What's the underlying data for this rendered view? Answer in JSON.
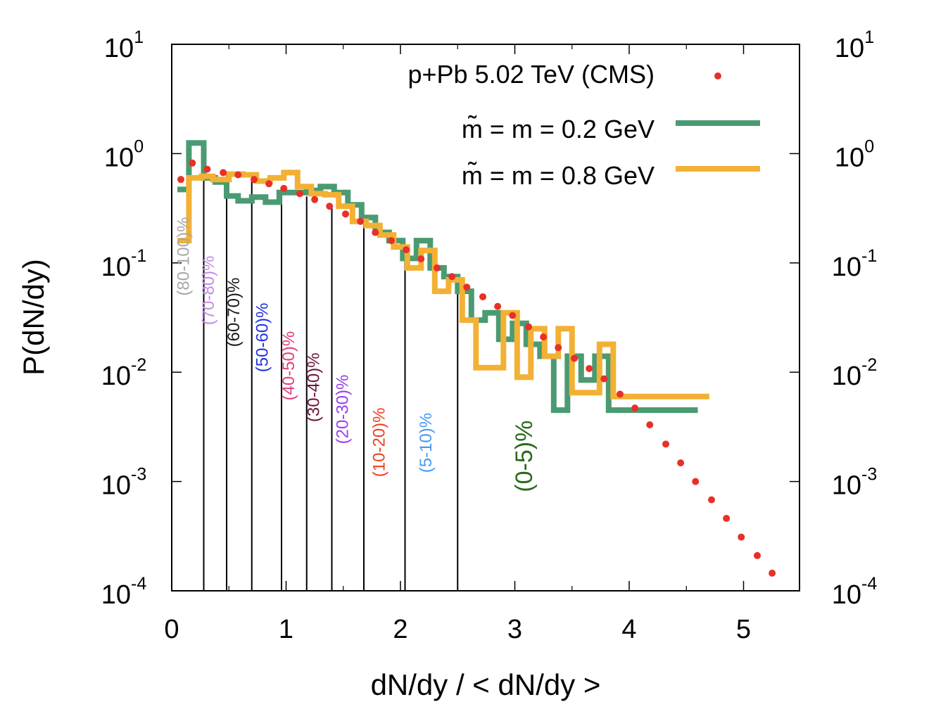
{
  "chart_data": {
    "type": "histogram-step",
    "xlabel": "dN/dy / < dN/dy >",
    "ylabel": "P(dN/dy)",
    "xlim": [
      0,
      5.5
    ],
    "ylim": [
      0.0001,
      10
    ],
    "yscale": "log",
    "x_ticks": [
      "0",
      "1",
      "2",
      "3",
      "4",
      "5"
    ],
    "y_ticks": [
      {
        "base": "10",
        "exp": "-4",
        "value": 0.0001
      },
      {
        "base": "10",
        "exp": "-3",
        "value": 0.001
      },
      {
        "base": "10",
        "exp": "-2",
        "value": 0.01
      },
      {
        "base": "10",
        "exp": "-1",
        "value": 0.1
      },
      {
        "base": "10",
        "exp": "0",
        "value": 1
      },
      {
        "base": "10",
        "exp": "1",
        "value": 10
      }
    ],
    "legend": {
      "cms": "p+Pb 5.02 TeV (CMS)",
      "green": "m̃ = m = 0.2 GeV",
      "orange": "m̃ = m = 0.8 GeV"
    },
    "colors": {
      "cms": "#e8302a",
      "green": "#4a9a72",
      "orange": "#f2b134",
      "axis": "#000000"
    },
    "cms_points": [
      {
        "x": 0.08,
        "y": 0.58
      },
      {
        "x": 0.18,
        "y": 0.82
      },
      {
        "x": 0.31,
        "y": 0.72
      },
      {
        "x": 0.45,
        "y": 0.67
      },
      {
        "x": 0.58,
        "y": 0.64
      },
      {
        "x": 0.72,
        "y": 0.58
      },
      {
        "x": 0.85,
        "y": 0.53
      },
      {
        "x": 0.98,
        "y": 0.48
      },
      {
        "x": 1.12,
        "y": 0.43
      },
      {
        "x": 1.25,
        "y": 0.38
      },
      {
        "x": 1.38,
        "y": 0.33
      },
      {
        "x": 1.52,
        "y": 0.28
      },
      {
        "x": 1.65,
        "y": 0.24
      },
      {
        "x": 1.78,
        "y": 0.19
      },
      {
        "x": 1.92,
        "y": 0.16
      },
      {
        "x": 2.05,
        "y": 0.132
      },
      {
        "x": 2.18,
        "y": 0.109
      },
      {
        "x": 2.32,
        "y": 0.09
      },
      {
        "x": 2.45,
        "y": 0.075
      },
      {
        "x": 2.58,
        "y": 0.06
      },
      {
        "x": 2.72,
        "y": 0.049
      },
      {
        "x": 2.85,
        "y": 0.04
      },
      {
        "x": 2.98,
        "y": 0.033
      },
      {
        "x": 3.12,
        "y": 0.026
      },
      {
        "x": 3.25,
        "y": 0.021
      },
      {
        "x": 3.38,
        "y": 0.0168
      },
      {
        "x": 3.52,
        "y": 0.0134
      },
      {
        "x": 3.65,
        "y": 0.0108
      },
      {
        "x": 3.78,
        "y": 0.0087
      },
      {
        "x": 3.92,
        "y": 0.0063
      },
      {
        "x": 4.05,
        "y": 0.0047
      },
      {
        "x": 4.18,
        "y": 0.0033
      },
      {
        "x": 4.32,
        "y": 0.0022
      },
      {
        "x": 4.45,
        "y": 0.00148
      },
      {
        "x": 4.58,
        "y": 0.001
      },
      {
        "x": 4.72,
        "y": 0.00068
      },
      {
        "x": 4.85,
        "y": 0.00046
      },
      {
        "x": 4.98,
        "y": 0.00031
      },
      {
        "x": 5.12,
        "y": 0.00021
      },
      {
        "x": 5.25,
        "y": 0.000145
      }
    ],
    "green_step": {
      "edges": [
        0.05,
        0.15,
        0.28,
        0.38,
        0.48,
        0.58,
        0.7,
        0.82,
        0.94,
        1.06,
        1.18,
        1.3,
        1.42,
        1.54,
        1.66,
        1.78,
        1.9,
        2.02,
        2.14,
        2.26,
        2.38,
        2.5,
        2.62,
        2.74,
        2.86,
        2.98,
        3.1,
        3.22,
        3.34,
        3.46,
        3.58,
        3.7,
        3.82,
        3.94,
        4.6
      ],
      "values": [
        0.47,
        1.25,
        0.6,
        0.55,
        0.41,
        0.37,
        0.4,
        0.36,
        0.44,
        0.44,
        0.46,
        0.5,
        0.44,
        0.34,
        0.26,
        0.19,
        0.16,
        0.11,
        0.16,
        0.09,
        0.075,
        0.055,
        0.03,
        0.035,
        0.02,
        0.028,
        0.018,
        0.014,
        0.0045,
        0.014,
        0.0085,
        0.014,
        0.0045,
        0.0045
      ]
    },
    "orange_step": {
      "edges": [
        0.05,
        0.15,
        0.26,
        0.36,
        0.5,
        0.62,
        0.74,
        0.86,
        0.98,
        1.1,
        1.22,
        1.34,
        1.46,
        1.58,
        1.7,
        1.82,
        1.94,
        2.06,
        2.18,
        2.3,
        2.42,
        2.54,
        2.66,
        2.78,
        2.9,
        3.02,
        3.14,
        3.26,
        3.38,
        3.5,
        3.62,
        3.74,
        3.86,
        4.7
      ],
      "values": [
        0.16,
        0.6,
        0.62,
        0.58,
        0.65,
        0.64,
        0.56,
        0.6,
        0.67,
        0.5,
        0.43,
        0.42,
        0.33,
        0.24,
        0.22,
        0.18,
        0.14,
        0.09,
        0.13,
        0.055,
        0.07,
        0.03,
        0.011,
        0.011,
        0.035,
        0.009,
        0.025,
        0.014,
        0.025,
        0.0065,
        0.0065,
        0.018,
        0.006
      ]
    },
    "centrality_lines": [
      0.28,
      0.48,
      0.7,
      0.96,
      1.18,
      1.4,
      1.68,
      2.04,
      2.5
    ],
    "centrality_labels": [
      {
        "text": "(80-100)%",
        "x": 0.15,
        "y": 0.05,
        "color": "#a8a8a8",
        "size": "small"
      },
      {
        "text": "(70-80)%",
        "x": 0.37,
        "y": 0.027,
        "color": "#c48de8",
        "size": "small"
      },
      {
        "text": "(60-70)%",
        "x": 0.59,
        "y": 0.017,
        "color": "#1a1a1a",
        "size": "small"
      },
      {
        "text": "(50-60)%",
        "x": 0.84,
        "y": 0.01,
        "color": "#2233dd",
        "size": "small"
      },
      {
        "text": "(40-50)%",
        "x": 1.07,
        "y": 0.0055,
        "color": "#e0407f",
        "size": "small"
      },
      {
        "text": "(30-40)%",
        "x": 1.29,
        "y": 0.0035,
        "color": "#6d1540",
        "size": "small"
      },
      {
        "text": "(20-30)%",
        "x": 1.54,
        "y": 0.0022,
        "color": "#9a40e8",
        "size": "small"
      },
      {
        "text": "(10-20)%",
        "x": 1.86,
        "y": 0.0011,
        "color": "#ee4022",
        "size": "small"
      },
      {
        "text": "(5-10)%",
        "x": 2.27,
        "y": 0.0012,
        "color": "#4499ee",
        "size": "small"
      },
      {
        "text": "(0-5)%",
        "x": 3.15,
        "y": 0.0008,
        "color": "#2a6a1a",
        "size": "large"
      }
    ]
  }
}
